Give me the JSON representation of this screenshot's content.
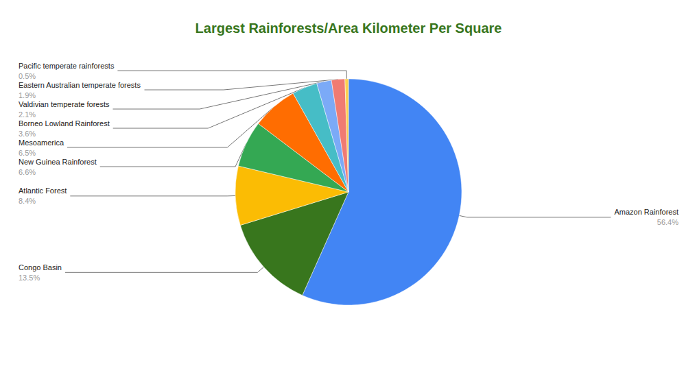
{
  "chart_data": {
    "type": "pie",
    "title": "Largest Rainforests/Area Kilometer Per Square",
    "categories": [
      "Amazon Rainforest",
      "Congo Basin",
      "Atlantic Forest",
      "New Guinea Rainforest",
      "Mesoamerica",
      "Borneo Lowland Rainforest",
      "Valdivian temperate forests",
      "Eastern Australian temperate forests",
      "Pacific temperate rainforests"
    ],
    "values": [
      56.4,
      13.5,
      8.4,
      6.6,
      6.5,
      3.6,
      2.1,
      1.9,
      0.5
    ],
    "value_labels": [
      "56.4%",
      "13.5%",
      "8.4%",
      "6.6%",
      "6.5%",
      "3.6%",
      "2.1%",
      "1.9%",
      "0.5%"
    ],
    "colors": [
      "#4285f4",
      "#38761d",
      "#fbbc04",
      "#34a853",
      "#ff6d01",
      "#46bdc6",
      "#7baaf7",
      "#f07b72",
      "#fcd04f"
    ],
    "data_labels": true
  }
}
